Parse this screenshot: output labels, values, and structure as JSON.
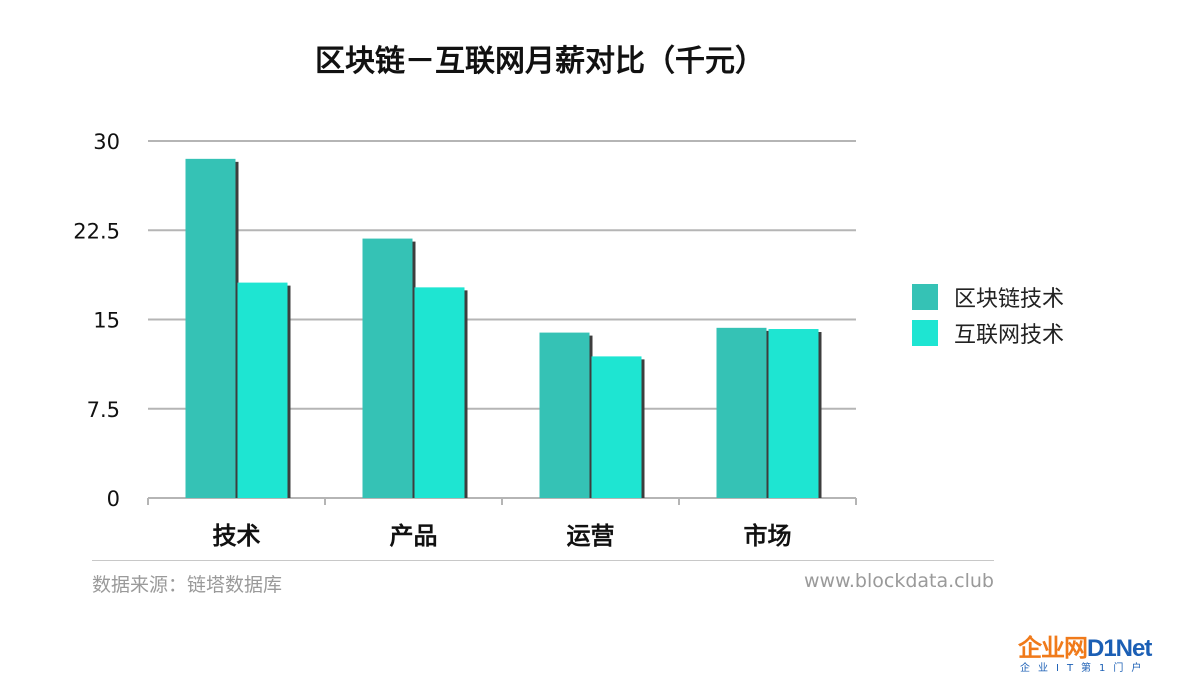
{
  "chart_data": {
    "type": "bar",
    "title": "区块链－互联网月薪对比（千元）",
    "categories": [
      "技术",
      "产品",
      "运营",
      "市场"
    ],
    "series": [
      {
        "name": "区块链技术",
        "values": [
          28.5,
          21.8,
          13.9,
          14.3
        ]
      },
      {
        "name": "互联网技术",
        "values": [
          18.1,
          17.7,
          11.9,
          14.2
        ]
      }
    ],
    "ylim": [
      0,
      30
    ],
    "yticks": [
      "30",
      "22.5",
      "15",
      "7.5",
      "0"
    ],
    "grid": true,
    "legend": "right",
    "colors": [
      "#35c2b5",
      "#1ee5d2"
    ]
  },
  "footer": {
    "source": "数据来源：链塔数据库",
    "site": "www.blockdata.club"
  },
  "watermark": {
    "cn": "企业网",
    "en": "D1Net",
    "sub": "企业IT第1门户"
  }
}
